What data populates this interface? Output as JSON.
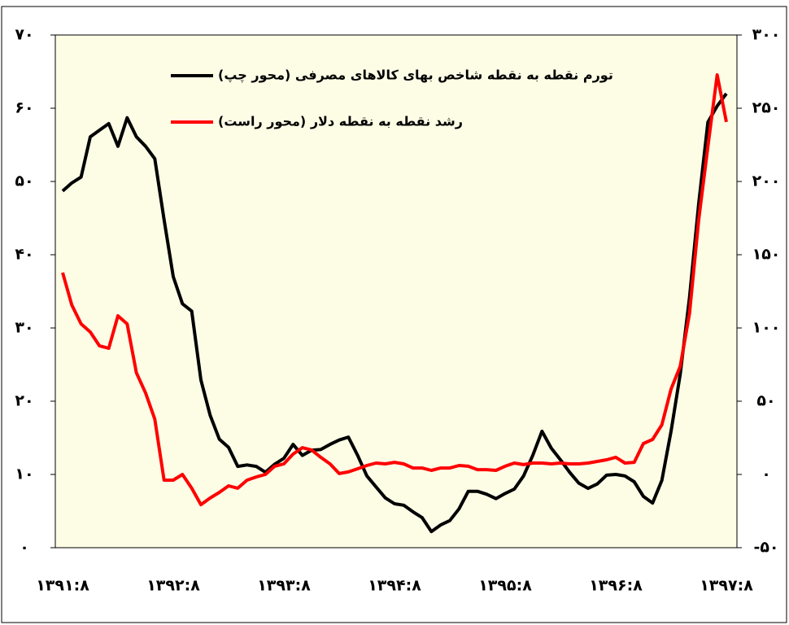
{
  "chart_data": {
    "type": "line",
    "categories": [
      "۱۳۹۱:۸",
      null,
      null,
      null,
      null,
      null,
      null,
      null,
      null,
      null,
      null,
      null,
      "۱۳۹۲:۸",
      null,
      null,
      null,
      null,
      null,
      null,
      null,
      null,
      null,
      null,
      null,
      "۱۳۹۳:۸",
      null,
      null,
      null,
      null,
      null,
      null,
      null,
      null,
      null,
      null,
      null,
      "۱۳۹۴:۸",
      null,
      null,
      null,
      null,
      null,
      null,
      null,
      null,
      null,
      null,
      null,
      "۱۳۹۵:۸",
      null,
      null,
      null,
      null,
      null,
      null,
      null,
      null,
      null,
      null,
      null,
      "۱۳۹۶:۸",
      null,
      null,
      null,
      null,
      null,
      null,
      null,
      null,
      null,
      null,
      null,
      "۱۳۹۷:۸"
    ],
    "series": [
      {
        "name": "تورم نقطه به نقطه شاخص بهای کالاهای مصرفی (محور چپ)",
        "color": "#000000",
        "axis": "y",
        "values": [
          48.7,
          49.8,
          50.6,
          56.1,
          57,
          57.9,
          54.8,
          58.7,
          56.1,
          54.8,
          53.1,
          44.8,
          37,
          33.3,
          32.3,
          22.9,
          18.1,
          14.8,
          13.7,
          11.1,
          11.3,
          11.1,
          10.3,
          11.4,
          12.2,
          14.1,
          12.6,
          13.3,
          13.4,
          14.1,
          14.7,
          15.1,
          12.6,
          9.8,
          8.3,
          6.8,
          6,
          5.8,
          4.9,
          4.1,
          2.2,
          3.1,
          3.7,
          5.3,
          7.7,
          7.7,
          7.3,
          6.7,
          7.4,
          8,
          9.8,
          12.6,
          15.9,
          13.6,
          12,
          10.3,
          8.8,
          8.1,
          8.7,
          9.9,
          10,
          9.8,
          9,
          7,
          6.1,
          9.2,
          15.9,
          23.7,
          34.2,
          47,
          58.1,
          60.3,
          62
        ]
      },
      {
        "name": "رشد نقطه به نقطه دلار (محور راست)",
        "color": "#ff0000",
        "axis": "y2",
        "values": [
          137.8,
          115.6,
          102.8,
          97.2,
          87.8,
          86.1,
          108.3,
          102.8,
          69.4,
          55.6,
          37.8,
          -3.9,
          -3.9,
          0,
          -9.4,
          -20.6,
          -16.1,
          -12.2,
          -7.8,
          -9.4,
          -3.9,
          -1.7,
          0,
          5.6,
          7.2,
          13.9,
          18.3,
          16.7,
          11.7,
          7.2,
          0.6,
          1.7,
          3.9,
          6.1,
          7.8,
          7.2,
          8.3,
          7.2,
          4.4,
          4.4,
          2.8,
          4.4,
          4.4,
          6.1,
          5.6,
          3.3,
          3.3,
          2.8,
          5.6,
          7.8,
          6.7,
          7.8,
          7.8,
          7.2,
          7.8,
          7.2,
          7.2,
          7.8,
          8.9,
          10,
          11.7,
          7.8,
          8.3,
          21.1,
          23.9,
          33.9,
          58.3,
          73.9,
          110,
          173.9,
          223.9,
          272.8,
          240.6
        ]
      }
    ],
    "ylim": [
      0,
      70
    ],
    "yticks": [
      {
        "value": 0,
        "label": "۰"
      },
      {
        "value": 10,
        "label": "۱۰"
      },
      {
        "value": 20,
        "label": "۲۰"
      },
      {
        "value": 30,
        "label": "۳۰"
      },
      {
        "value": 40,
        "label": "۴۰"
      },
      {
        "value": 50,
        "label": "۵۰"
      },
      {
        "value": 60,
        "label": "۶۰"
      },
      {
        "value": 70,
        "label": "۷۰"
      }
    ],
    "y2lim": [
      -50,
      300
    ],
    "y2ticks": [
      {
        "value": -50,
        "label": "-۵۰"
      },
      {
        "value": 0,
        "label": "۰"
      },
      {
        "value": 50,
        "label": "۵۰"
      },
      {
        "value": 100,
        "label": "۱۰۰"
      },
      {
        "value": 150,
        "label": "۱۵۰"
      },
      {
        "value": 200,
        "label": "۲۰۰"
      },
      {
        "value": 250,
        "label": "۲۵۰"
      },
      {
        "value": 300,
        "label": "۳۰۰"
      }
    ]
  }
}
